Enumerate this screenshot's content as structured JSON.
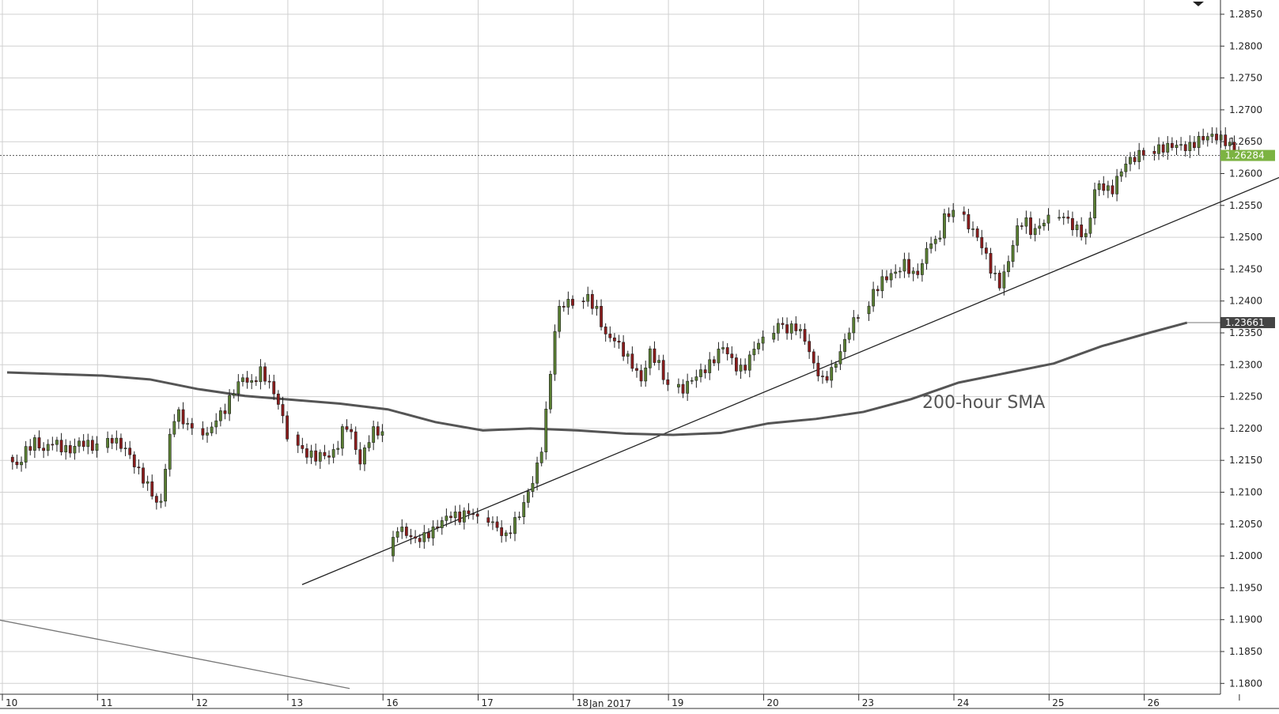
{
  "chart_data": {
    "type": "candlestick",
    "timeframe": "hourly",
    "x_labels": [
      "10",
      "11",
      "12",
      "13",
      "16",
      "17",
      "18",
      "19",
      "20",
      "23",
      "24",
      "25",
      "26"
    ],
    "month_label": "Jan 2017",
    "y_ticks": [
      "1.2850",
      "1.2800",
      "1.2750",
      "1.2700",
      "1.2650",
      "1.2600",
      "1.2550",
      "1.2500",
      "1.2450",
      "1.2400",
      "1.2350",
      "1.2300",
      "1.2250",
      "1.2200",
      "1.2150",
      "1.2100",
      "1.2050",
      "1.2000",
      "1.1950",
      "1.1900",
      "1.1850",
      "1.1800"
    ],
    "ylim": [
      1.178,
      1.287
    ],
    "grid": true,
    "current_price": {
      "label": "1.26284",
      "value": 1.26284,
      "color": "#7cb342"
    },
    "sma": {
      "name": "200-hour SMA",
      "last_label": "1.23661",
      "last_value": 1.23661,
      "color": "#555555",
      "points": [
        [
          0,
          1.2288
        ],
        [
          1,
          1.2283
        ],
        [
          1.5,
          1.2277
        ],
        [
          2,
          1.2262
        ],
        [
          2.5,
          1.2251
        ],
        [
          3,
          1.2245
        ],
        [
          3.5,
          1.2239
        ],
        [
          4,
          1.223
        ],
        [
          4.5,
          1.221
        ],
        [
          5,
          1.2197
        ],
        [
          5.5,
          1.22
        ],
        [
          6,
          1.2197
        ],
        [
          6.5,
          1.2192
        ],
        [
          7,
          1.219
        ],
        [
          7.5,
          1.2193
        ],
        [
          8,
          1.2208
        ],
        [
          8.5,
          1.2215
        ],
        [
          9,
          1.2226
        ],
        [
          9.5,
          1.2246
        ],
        [
          10,
          1.2272
        ],
        [
          10.5,
          1.2287
        ],
        [
          11,
          1.2302
        ],
        [
          11.5,
          1.2329
        ],
        [
          12,
          1.235
        ],
        [
          12.4,
          1.23661
        ]
      ]
    },
    "trendlines": [
      {
        "name": "rising-support",
        "points": [
          [
            3.1,
            1.1955
          ],
          [
            13.5,
            1.2602
          ]
        ],
        "color": "#222222"
      },
      {
        "name": "falling-line",
        "points": [
          [
            -0.1,
            1.19
          ],
          [
            3.6,
            1.1792
          ]
        ],
        "color": "#777777"
      }
    ],
    "segments": [
      {
        "day": 0,
        "prices": [
          1.2155,
          1.214,
          1.2165,
          1.218,
          1.2165,
          1.218,
          1.217,
          1.2165,
          1.2178,
          1.2175,
          1.217
        ]
      },
      {
        "day": 1,
        "prices": [
          1.217,
          1.2185,
          1.2175,
          1.2165,
          1.214,
          1.212,
          1.21,
          1.207,
          1.217,
          1.223,
          1.221,
          1.22
        ]
      },
      {
        "day": 2,
        "prices": [
          1.22,
          1.219,
          1.2215,
          1.223,
          1.226,
          1.228,
          1.227,
          1.229,
          1.227,
          1.224,
          1.219
        ]
      },
      {
        "day": 3,
        "prices": [
          1.219,
          1.2165,
          1.216,
          1.2155,
          1.216,
          1.2155,
          1.2175,
          1.221,
          1.2185,
          1.2145,
          1.218,
          1.22,
          1.219
        ]
      },
      {
        "day": 4,
        "prices": [
          1.2,
          1.2045,
          1.2035,
          1.2025,
          1.203,
          1.204,
          1.2055,
          1.2065,
          1.206,
          1.207,
          1.206
        ]
      },
      {
        "day": 5,
        "prices": [
          1.206,
          1.2055,
          1.204,
          1.203,
          1.205,
          1.207,
          1.21,
          1.213,
          1.218,
          1.229,
          1.239,
          1.2395,
          1.24
        ]
      },
      {
        "day": 6,
        "prices": [
          1.24,
          1.2405,
          1.2385,
          1.2345,
          1.234,
          1.232,
          1.23,
          1.2275,
          1.232,
          1.23,
          1.2265
        ]
      },
      {
        "day": 7,
        "prices": [
          1.2265,
          1.226,
          1.2275,
          1.2285,
          1.2295,
          1.231,
          1.233,
          1.231,
          1.229,
          1.23,
          1.233,
          1.234
        ]
      },
      {
        "day": 8,
        "prices": [
          1.234,
          1.2365,
          1.2355,
          1.236,
          1.234,
          1.23,
          1.2275,
          1.229,
          1.232,
          1.2355,
          1.238
        ]
      },
      {
        "day": 9,
        "prices": [
          1.238,
          1.241,
          1.243,
          1.244,
          1.2445,
          1.246,
          1.244,
          1.245,
          1.2495,
          1.249,
          1.2535,
          1.254
        ]
      },
      {
        "day": 10,
        "prices": [
          1.254,
          1.252,
          1.2505,
          1.248,
          1.2445,
          1.2425,
          1.246,
          1.251,
          1.253,
          1.2505,
          1.252,
          1.253
        ]
      },
      {
        "day": 11,
        "prices": [
          1.253,
          1.2535,
          1.252,
          1.251,
          1.25,
          1.258,
          1.258,
          1.257,
          1.26,
          1.262,
          1.2625,
          1.2635
        ]
      },
      {
        "day": 12,
        "prices": [
          1.2635,
          1.264,
          1.2645,
          1.264,
          1.2655,
          1.266,
          1.265,
          1.2628
        ]
      }
    ]
  }
}
